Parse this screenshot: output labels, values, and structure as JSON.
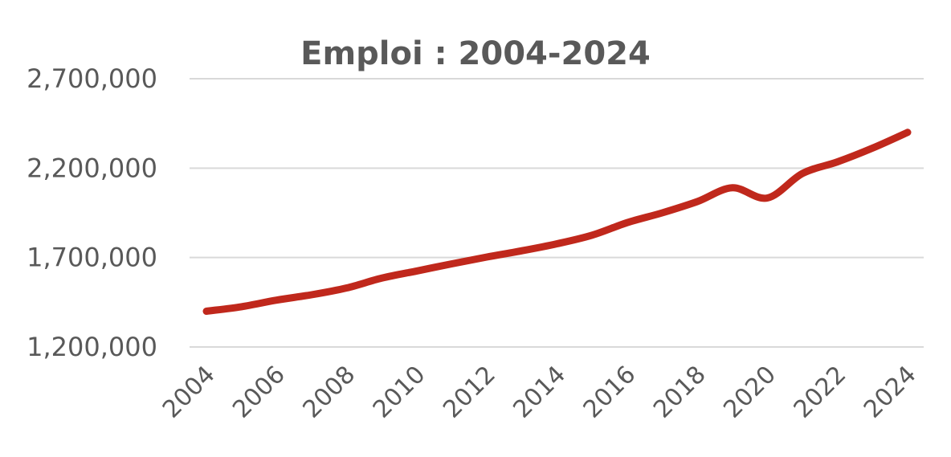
{
  "chart_data": {
    "type": "line",
    "title": "Emploi : 2004-2024",
    "xlabel": "",
    "ylabel": "",
    "x": [
      2004,
      2005,
      2006,
      2007,
      2008,
      2009,
      2010,
      2011,
      2012,
      2013,
      2014,
      2015,
      2016,
      2017,
      2018,
      2019,
      2020,
      2021,
      2022,
      2023,
      2024
    ],
    "x_tick_labels": [
      "2004",
      "2006",
      "2008",
      "2010",
      "2012",
      "2014",
      "2016",
      "2018",
      "2020",
      "2022",
      "2024"
    ],
    "y_tick_values": [
      1200000,
      1700000,
      2200000,
      2700000
    ],
    "y_tick_labels": [
      "1,200,000",
      "1,700,000",
      "2,200,000",
      "2,700,000"
    ],
    "ylim": [
      1200000,
      2700000
    ],
    "grid": true,
    "legend": "none",
    "series": [
      {
        "values": [
          1400000,
          1425000,
          1462000,
          1492000,
          1530000,
          1585000,
          1625000,
          1665000,
          1703000,
          1738000,
          1777000,
          1825000,
          1895000,
          1950000,
          2013000,
          2090000,
          2033000,
          2170000,
          2235000,
          2312000,
          2400000
        ],
        "color": "#c0281c"
      }
    ]
  }
}
